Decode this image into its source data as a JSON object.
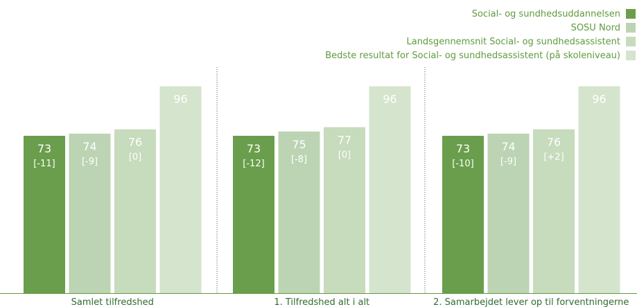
{
  "chart_data": {
    "type": "bar",
    "categories": [
      "Samlet tilfredshed",
      "1. Tilfredshed alt i alt",
      "2. Samarbejdet lever op til forventningerne"
    ],
    "series": [
      {
        "name": "Social- og sundhedsuddannelsen",
        "color": "#6a9e4c",
        "values": [
          73,
          73,
          73
        ],
        "deltas": [
          "[-11]",
          "[-12]",
          "[-10]"
        ]
      },
      {
        "name": "SOSU Nord",
        "color": "#bcd4b3",
        "values": [
          74,
          75,
          74
        ],
        "deltas": [
          "[-9]",
          "[-8]",
          "[-9]"
        ]
      },
      {
        "name": "Landsgennemsnit Social- og sundhedsassistent",
        "color": "#c7dbbd",
        "values": [
          76,
          77,
          76
        ],
        "deltas": [
          "[0]",
          "[0]",
          "[+2]"
        ]
      },
      {
        "name": "Bedste resultat for Social- og sundhedsassistent (på skoleniveau)",
        "color": "#d5e4cd",
        "values": [
          96,
          96,
          96
        ],
        "deltas": [
          "",
          "",
          ""
        ]
      }
    ],
    "ylim": [
      0,
      100
    ],
    "grid": false,
    "legend_position": "top-right"
  }
}
